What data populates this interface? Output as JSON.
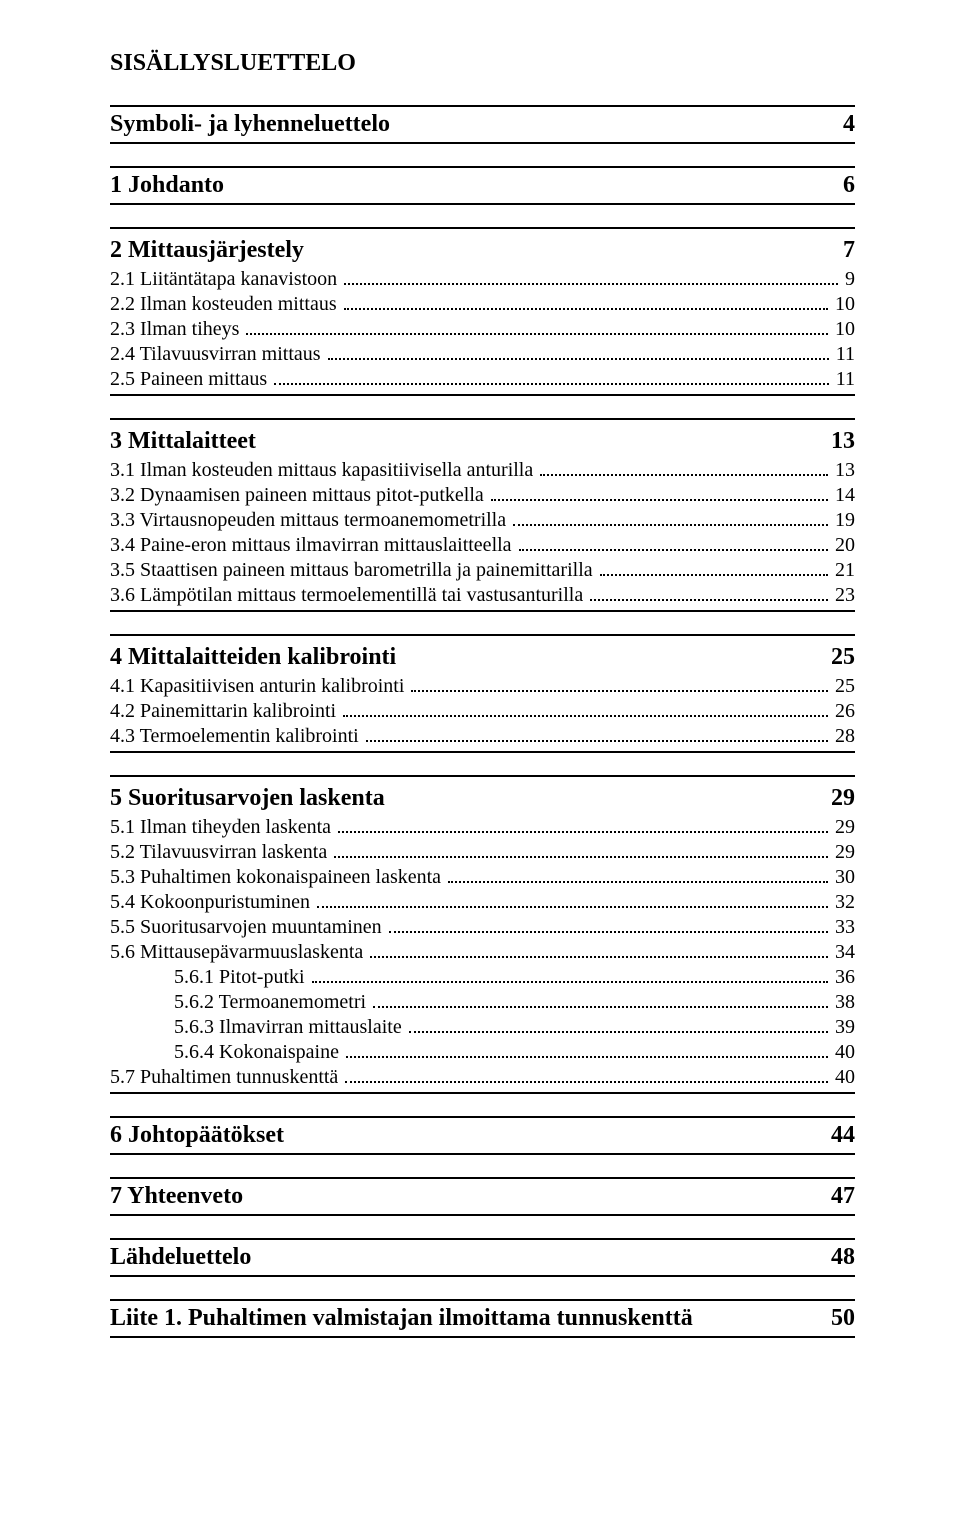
{
  "title": "SISÄLLYSLUETTELO",
  "sections": [
    {
      "label": "Symboli- ja lyhenneluettelo",
      "page": "4",
      "subs": []
    },
    {
      "label": "1  Johdanto",
      "page": "6",
      "subs": []
    },
    {
      "label": "2  Mittausjärjestely",
      "page": "7",
      "subs": [
        {
          "label": "2.1  Liitäntätapa kanavistoon",
          "page": "9",
          "indent": 0
        },
        {
          "label": "2.2  Ilman kosteuden mittaus",
          "page": "10",
          "indent": 0
        },
        {
          "label": "2.3  Ilman tiheys",
          "page": "10",
          "indent": 0
        },
        {
          "label": "2.4  Tilavuusvirran mittaus",
          "page": "11",
          "indent": 0
        },
        {
          "label": "2.5  Paineen mittaus",
          "page": "11",
          "indent": 0
        }
      ]
    },
    {
      "label": "3  Mittalaitteet",
      "page": "13",
      "subs": [
        {
          "label": "3.1  Ilman kosteuden mittaus kapasitiivisella anturilla",
          "page": "13",
          "indent": 0
        },
        {
          "label": "3.2  Dynaamisen paineen mittaus pitot-putkella",
          "page": "14",
          "indent": 0
        },
        {
          "label": "3.3  Virtausnopeuden mittaus termoanemometrilla",
          "page": "19",
          "indent": 0
        },
        {
          "label": "3.4  Paine-eron mittaus ilmavirran mittauslaitteella",
          "page": "20",
          "indent": 0
        },
        {
          "label": "3.5  Staattisen paineen mittaus barometrilla ja painemittarilla",
          "page": "21",
          "indent": 0
        },
        {
          "label": "3.6  Lämpötilan mittaus termoelementillä tai vastusanturilla",
          "page": "23",
          "indent": 0
        }
      ]
    },
    {
      "label": "4  Mittalaitteiden kalibrointi",
      "page": "25",
      "subs": [
        {
          "label": "4.1  Kapasitiivisen anturin kalibrointi",
          "page": "25",
          "indent": 0
        },
        {
          "label": "4.2  Painemittarin kalibrointi",
          "page": "26",
          "indent": 0
        },
        {
          "label": "4.3  Termoelementin kalibrointi",
          "page": "28",
          "indent": 0
        }
      ]
    },
    {
      "label": "5  Suoritusarvojen laskenta",
      "page": "29",
      "subs": [
        {
          "label": "5.1  Ilman tiheyden laskenta",
          "page": "29",
          "indent": 0
        },
        {
          "label": "5.2  Tilavuusvirran laskenta",
          "page": "29",
          "indent": 0
        },
        {
          "label": "5.3  Puhaltimen kokonaispaineen laskenta",
          "page": "30",
          "indent": 0
        },
        {
          "label": "5.4  Kokoonpuristuminen",
          "page": "32",
          "indent": 0
        },
        {
          "label": "5.5  Suoritusarvojen muuntaminen",
          "page": "33",
          "indent": 0
        },
        {
          "label": "5.6  Mittausepävarmuuslaskenta",
          "page": "34",
          "indent": 0
        },
        {
          "label": "5.6.1  Pitot-putki",
          "page": "36",
          "indent": 1
        },
        {
          "label": "5.6.2  Termoanemometri",
          "page": "38",
          "indent": 1
        },
        {
          "label": "5.6.3  Ilmavirran mittauslaite",
          "page": "39",
          "indent": 1
        },
        {
          "label": "5.6.4  Kokonaispaine",
          "page": "40",
          "indent": 1
        },
        {
          "label": "5.7  Puhaltimen tunnuskenttä",
          "page": "40",
          "indent": 0
        }
      ]
    },
    {
      "label": "6  Johtopäätökset",
      "page": "44",
      "subs": []
    },
    {
      "label": "7  Yhteenveto",
      "page": "47",
      "subs": []
    },
    {
      "label": "Lähdeluettelo",
      "page": "48",
      "subs": []
    },
    {
      "label": "Liite 1. Puhaltimen valmistajan ilmoittama tunnuskenttä",
      "page": "50",
      "subs": []
    }
  ]
}
